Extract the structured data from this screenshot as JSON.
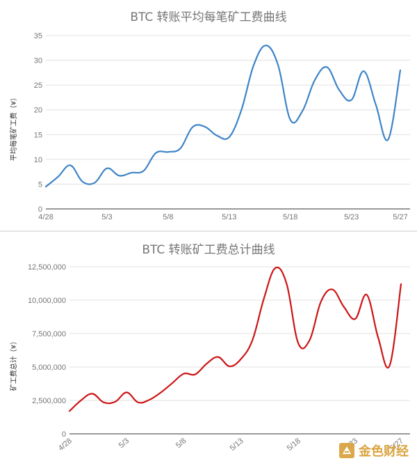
{
  "chart_data": [
    {
      "type": "line",
      "title": "BTC 转账平均每笔矿工费曲线",
      "ylabel": "平均每笔矿工费（¥）",
      "xlabel": "",
      "ylim": [
        0,
        35
      ],
      "yticks": [
        "0",
        "5",
        "10",
        "15",
        "20",
        "25",
        "30",
        "35"
      ],
      "ytick_values": [
        0,
        5,
        10,
        15,
        20,
        25,
        30,
        35
      ],
      "xtick_labels": [
        "4/28",
        "5/3",
        "5/8",
        "5/13",
        "5/18",
        "5/23",
        "5/27"
      ],
      "xtick_days": [
        0,
        5,
        10,
        15,
        20,
        25,
        29
      ],
      "x_days": [
        0,
        1,
        2,
        3,
        4,
        5,
        6,
        7,
        8,
        9,
        10,
        11,
        12,
        13,
        14,
        15,
        16,
        17,
        18,
        19,
        20,
        21,
        22,
        23,
        24,
        25,
        26,
        27,
        28,
        29
      ],
      "series": [
        {
          "color": "#3d84c6",
          "values": [
            4.5,
            6.5,
            8.8,
            5.5,
            5.3,
            8.2,
            6.7,
            7.3,
            7.7,
            11.3,
            11.5,
            12.2,
            16.5,
            16.6,
            14.8,
            14.5,
            20.0,
            29.0,
            33.0,
            29.0,
            18.0,
            19.8,
            26.0,
            28.6,
            24.0,
            22.0,
            27.8,
            21.0,
            14.0,
            28.0
          ]
        }
      ]
    },
    {
      "type": "line",
      "title": "BTC 转账矿工费总计曲线",
      "ylabel": "矿工费总计（¥）",
      "xlabel": "",
      "ylim": [
        0,
        12500000
      ],
      "yticks": [
        "0",
        "2,500,000",
        "5,000,000",
        "7,500,000",
        "10,000,000",
        "12,500,000"
      ],
      "ytick_values": [
        0,
        2500000,
        5000000,
        7500000,
        10000000,
        12500000
      ],
      "xtick_labels": [
        "4/28",
        "5/3",
        "5/8",
        "5/13",
        "5/18",
        "5/23",
        "5/27"
      ],
      "xtick_days": [
        0,
        5,
        10,
        15,
        20,
        25,
        29
      ],
      "x_days": [
        0,
        1,
        2,
        3,
        4,
        5,
        6,
        7,
        8,
        9,
        10,
        11,
        12,
        13,
        14,
        15,
        16,
        17,
        18,
        19,
        20,
        21,
        22,
        23,
        24,
        25,
        26,
        27,
        28,
        29
      ],
      "series": [
        {
          "color": "#cc1414",
          "values": [
            1700000,
            2500000,
            3000000,
            2350000,
            2400000,
            3100000,
            2350000,
            2550000,
            3100000,
            3800000,
            4500000,
            4450000,
            5250000,
            5750000,
            5050000,
            5600000,
            7000000,
            10100000,
            12400000,
            11200000,
            6800000,
            7000000,
            9900000,
            10800000,
            9500000,
            8600000,
            10400000,
            7200000,
            5100000,
            11200000
          ]
        }
      ]
    }
  ],
  "watermark": {
    "text": "金色财经",
    "color": "#d9a441"
  }
}
